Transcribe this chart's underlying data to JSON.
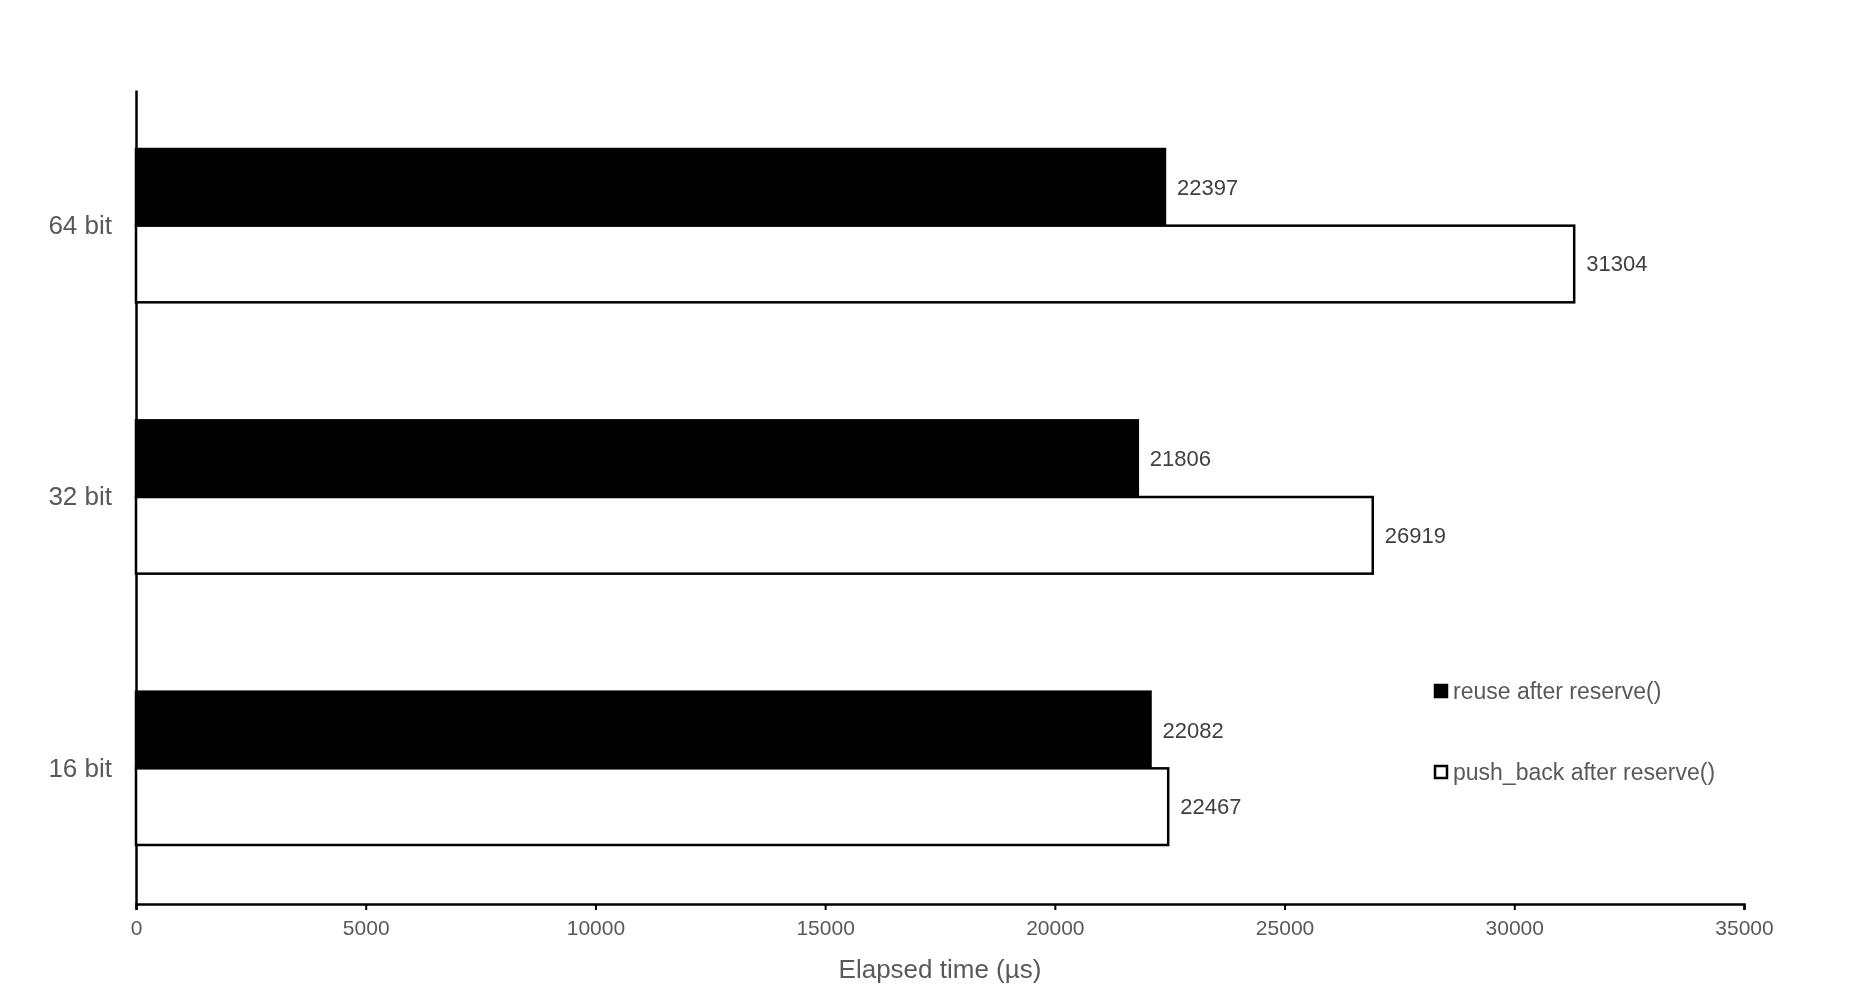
{
  "chart_data": {
    "type": "bar",
    "orientation": "horizontal",
    "categories": [
      "64 bit",
      "32 bit",
      "16 bit"
    ],
    "series": [
      {
        "name": "reuse after reserve()",
        "color": "#000000",
        "values": [
          22397,
          21806,
          22082
        ]
      },
      {
        "name": "push_back after reserve()",
        "color": "#ffffff",
        "values": [
          31304,
          26919,
          22467
        ]
      }
    ],
    "xlabel": "Elapsed time (µs)",
    "xlim": [
      0,
      35000
    ],
    "xticks": [
      0,
      5000,
      10000,
      15000,
      20000,
      25000,
      30000,
      35000
    ],
    "data_labels": true,
    "legend": "right",
    "grid": false
  }
}
